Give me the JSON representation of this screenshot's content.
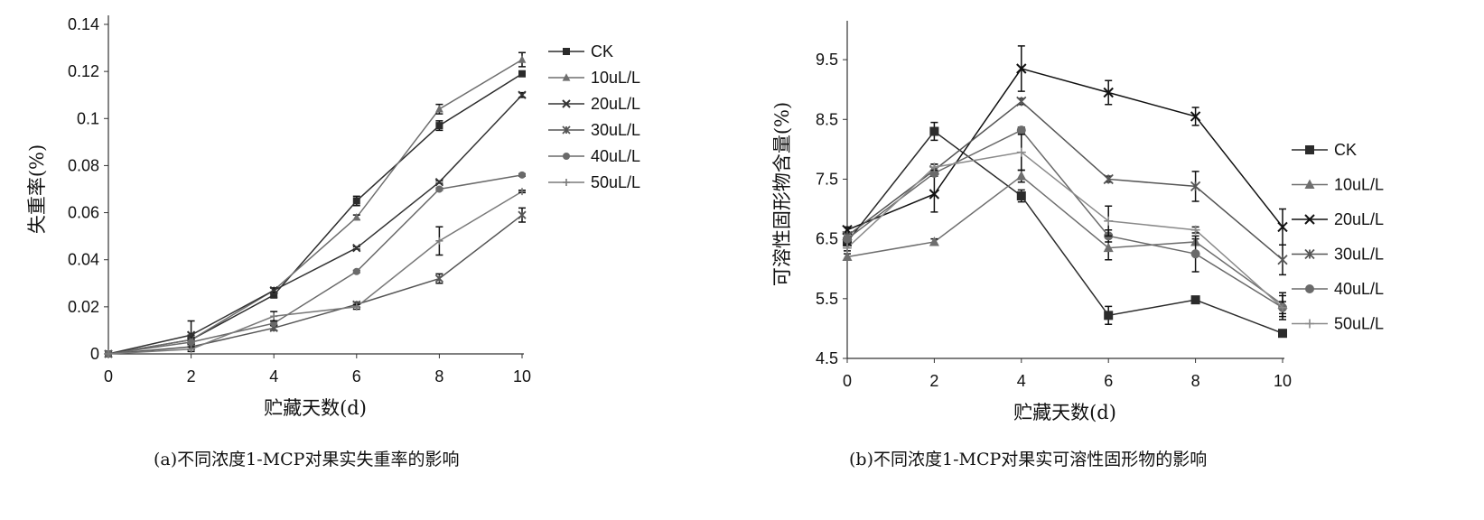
{
  "charts_meta": [
    {
      "caption": "(a)不同浓度1-MCP对果实失重率的影响"
    },
    {
      "caption": "(b)不同浓度1-MCP对果实可溶性固形物的影响"
    }
  ],
  "chart_data": [
    {
      "type": "line",
      "title": "",
      "xlabel": "贮藏天数(d)",
      "ylabel": "失重率(%)",
      "x": [
        0,
        2,
        4,
        6,
        8,
        10
      ],
      "xlim": [
        0,
        10
      ],
      "ylim": [
        0,
        0.14
      ],
      "yticks": [
        "0",
        "0.02",
        "0.04",
        "0.06",
        "0.08",
        "0.1",
        "0.12",
        "0.14"
      ],
      "ytick_values": [
        0,
        0.02,
        0.04,
        0.06,
        0.08,
        0.1,
        0.12,
        0.14
      ],
      "xticks": [
        "0",
        "2",
        "4",
        "6",
        "8",
        "10"
      ],
      "grid": false,
      "legend_position": "right",
      "series": [
        {
          "name": "CK",
          "marker": "square",
          "color": "#2b2b2b",
          "values": [
            0,
            0.006,
            0.025,
            0.065,
            0.097,
            0.119
          ],
          "errors": [
            0,
            0.002,
            0.001,
            0.002,
            0.002,
            0.001
          ]
        },
        {
          "name": "10uL/L",
          "marker": "triangle",
          "color": "#6e6e6e",
          "values": [
            0,
            0.006,
            0.027,
            0.058,
            0.104,
            0.125
          ],
          "errors": [
            0,
            0.001,
            0.001,
            0.001,
            0.002,
            0.003
          ]
        },
        {
          "name": "20uL/L",
          "marker": "x",
          "color": "#333333",
          "values": [
            0,
            0.008,
            0.027,
            0.045,
            0.073,
            0.11
          ],
          "errors": [
            0,
            0.006,
            0.001,
            0.0005,
            0.0005,
            0.001
          ]
        },
        {
          "name": "30uL/L",
          "marker": "asterisk",
          "color": "#555555",
          "values": [
            0,
            0.003,
            0.011,
            0.021,
            0.032,
            0.059
          ],
          "errors": [
            0,
            0.001,
            0.001,
            0.001,
            0.002,
            0.003
          ]
        },
        {
          "name": "40uL/L",
          "marker": "circle",
          "color": "#6a6a6a",
          "values": [
            0,
            0.005,
            0.013,
            0.035,
            0.07,
            0.076
          ],
          "errors": [
            0,
            0.001,
            0.001,
            0.0005,
            0.0005,
            0.0005
          ]
        },
        {
          "name": "50uL/L",
          "marker": "plus",
          "color": "#7a7a7a",
          "values": [
            0,
            0.002,
            0.016,
            0.02,
            0.048,
            0.069
          ],
          "errors": [
            0,
            0.001,
            0.002,
            0.001,
            0.006,
            0.0005
          ]
        }
      ]
    },
    {
      "type": "line",
      "title": "",
      "xlabel": "贮藏天数(d)",
      "ylabel": "可溶性固形物含量(%)",
      "x": [
        0,
        2,
        4,
        6,
        8,
        10
      ],
      "xlim": [
        0,
        10
      ],
      "ylim": [
        4.5,
        10
      ],
      "yticks": [
        "4.5",
        "5.5",
        "6.5",
        "7.5",
        "8.5",
        "9.5"
      ],
      "ytick_values": [
        4.5,
        5.5,
        6.5,
        7.5,
        8.5,
        9.5
      ],
      "xticks": [
        "0",
        "2",
        "4",
        "6",
        "8",
        "10"
      ],
      "grid": false,
      "legend_position": "right",
      "series": [
        {
          "name": "CK",
          "marker": "square",
          "color": "#2b2b2b",
          "values": [
            6.45,
            8.3,
            7.22,
            5.22,
            5.48,
            4.92
          ],
          "errors": [
            0.1,
            0.15,
            0.1,
            0.15,
            0.05,
            0.05
          ]
        },
        {
          "name": "10uL/L",
          "marker": "triangle",
          "color": "#6e6e6e",
          "values": [
            6.2,
            6.45,
            7.55,
            6.35,
            6.45,
            5.4
          ],
          "errors": [
            0.05,
            0.05,
            0.1,
            0.2,
            0.05,
            0.2
          ]
        },
        {
          "name": "20uL/L",
          "marker": "x",
          "color": "#111111",
          "values": [
            6.65,
            7.25,
            9.35,
            8.95,
            8.55,
            6.7
          ],
          "errors": [
            0.05,
            0.3,
            0.38,
            0.2,
            0.15,
            0.3
          ]
        },
        {
          "name": "30uL/L",
          "marker": "asterisk",
          "color": "#555555",
          "values": [
            6.55,
            7.65,
            8.8,
            7.5,
            7.38,
            6.15
          ],
          "errors": [
            0.05,
            0.1,
            0.05,
            0.05,
            0.25,
            0.25
          ]
        },
        {
          "name": "40uL/L",
          "marker": "circle",
          "color": "#6a6a6a",
          "values": [
            6.5,
            7.6,
            8.32,
            6.55,
            6.25,
            5.35
          ],
          "errors": [
            0.05,
            0.05,
            0.05,
            0.1,
            0.3,
            0.2
          ]
        },
        {
          "name": "50uL/L",
          "marker": "plus",
          "color": "#8a8a8a",
          "values": [
            6.35,
            7.7,
            7.95,
            6.8,
            6.65,
            5.35
          ],
          "errors": [
            0.05,
            0.05,
            0.3,
            0.25,
            0.05,
            0.1
          ]
        }
      ]
    }
  ]
}
